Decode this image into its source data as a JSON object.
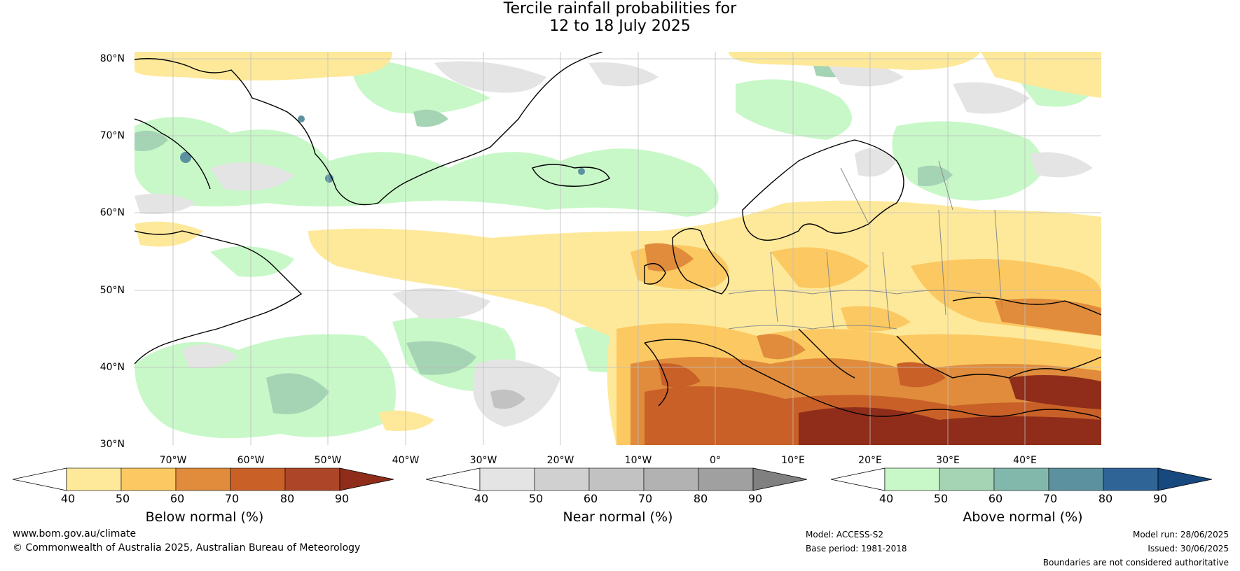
{
  "title": {
    "line1": "Tercile rainfall probabilities for",
    "line2": "12 to 18 July 2025"
  },
  "map": {
    "lat_labels": [
      "80°N",
      "70°N",
      "60°N",
      "50°N",
      "40°N",
      "30°N"
    ],
    "lon_labels": [
      "70°W",
      "60°W",
      "50°W",
      "40°W",
      "30°W",
      "20°W",
      "10°W",
      "0°",
      "10°E",
      "20°E",
      "30°E",
      "40°E"
    ]
  },
  "colorbars": [
    {
      "title": "Below normal (%)",
      "ticks": [
        "40",
        "50",
        "60",
        "70",
        "80",
        "90"
      ],
      "colors": [
        "#ffffff",
        "#fee99a",
        "#fcc861",
        "#e08c3c",
        "#c96028",
        "#ad4628",
        "#8f2d1a"
      ]
    },
    {
      "title": "Near normal (%)",
      "ticks": [
        "40",
        "50",
        "60",
        "70",
        "80",
        "90"
      ],
      "colors": [
        "#ffffff",
        "#e4e4e4",
        "#d0d0d0",
        "#c2c2c2",
        "#b2b2b2",
        "#a0a0a0",
        "#808080"
      ]
    },
    {
      "title": "Above normal (%)",
      "ticks": [
        "40",
        "50",
        "60",
        "70",
        "80",
        "90"
      ],
      "colors": [
        "#ffffff",
        "#c8f8c8",
        "#a4d4b4",
        "#82b8ac",
        "#5c92a0",
        "#2f6496",
        "#17487e"
      ]
    }
  ],
  "footer": {
    "website": "www.bom.gov.au/climate",
    "copyright": "© Commonwealth of Australia 2025, Australian Bureau of Meteorology",
    "model": "Model: ACCESS-S2",
    "base_period": "Base period: 1981-2018",
    "model_run": "Model run: 28/06/2025",
    "issued": "Issued: 30/06/2025",
    "disclaimer": "Boundaries are not considered authoritative"
  }
}
